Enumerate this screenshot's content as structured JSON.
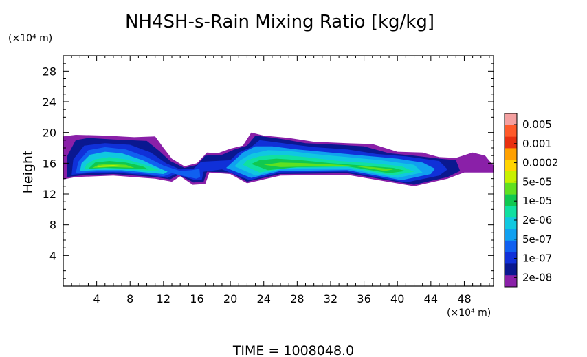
{
  "chart_data": {
    "type": "heatmap",
    "title": "NH4SH-s-Rain Mixing Ratio [kg/kg]",
    "xlabel": "",
    "ylabel": "Height",
    "x_unit": "(×10⁴ m)",
    "y_unit": "(×10⁴ m)",
    "xlim": [
      0,
      51.5
    ],
    "ylim": [
      0,
      30
    ],
    "x_ticks": [
      4,
      8,
      12,
      16,
      20,
      24,
      28,
      32,
      36,
      40,
      44,
      48
    ],
    "y_ticks": [
      4,
      8,
      12,
      16,
      20,
      24,
      28
    ],
    "colorbar": {
      "labels": [
        "0.005",
        "0.001",
        "0.0002",
        "5e-05",
        "1e-05",
        "2e-06",
        "5e-07",
        "1e-07",
        "2e-08"
      ],
      "colors": [
        "#f4a0a0",
        "#ff5a2a",
        "#e83010",
        "#ffa000",
        "#ffd400",
        "#c8f000",
        "#60e020",
        "#10c850",
        "#10e0a0",
        "#10c8e0",
        "#10a0f0",
        "#1060f0",
        "#1030d8",
        "#0a1890",
        "#8a20a8"
      ]
    },
    "regions": [
      {
        "level": 0,
        "points": [
          [
            0,
            13.9
          ],
          [
            1.5,
            14.2
          ],
          [
            6,
            14.4
          ],
          [
            11,
            14
          ],
          [
            13,
            13.6
          ],
          [
            14,
            14.3
          ],
          [
            15.5,
            13.2
          ],
          [
            17,
            13.3
          ],
          [
            17.5,
            14.8
          ],
          [
            20,
            14.6
          ],
          [
            22,
            13.4
          ],
          [
            26,
            14.4
          ],
          [
            34,
            14.5
          ],
          [
            42,
            13
          ],
          [
            46,
            14
          ],
          [
            48,
            14.8
          ],
          [
            51.5,
            14.8
          ],
          [
            51.5,
            15.7
          ],
          [
            50.5,
            17
          ],
          [
            49,
            17.4
          ],
          [
            47,
            16.7
          ],
          [
            45,
            16.8
          ],
          [
            43,
            17.4
          ],
          [
            40,
            17.5
          ],
          [
            37,
            18.5
          ],
          [
            34,
            18.6
          ],
          [
            30,
            18.8
          ],
          [
            27,
            19.3
          ],
          [
            24,
            19.6
          ],
          [
            22.5,
            20
          ],
          [
            21.5,
            18.3
          ],
          [
            20,
            17.9
          ],
          [
            18.5,
            17.3
          ],
          [
            17.2,
            17.4
          ],
          [
            16,
            16
          ],
          [
            14.5,
            15.6
          ],
          [
            13,
            16.6
          ],
          [
            12,
            18
          ],
          [
            11,
            19.5
          ],
          [
            8.5,
            19.4
          ],
          [
            5,
            19.6
          ],
          [
            1.5,
            19.7
          ],
          [
            0,
            19.5
          ]
        ]
      },
      {
        "level": 1,
        "points": [
          [
            0.4,
            14.2
          ],
          [
            2,
            14.4
          ],
          [
            6,
            14.6
          ],
          [
            11,
            14.2
          ],
          [
            12.8,
            13.9
          ],
          [
            13.8,
            14.5
          ],
          [
            15.6,
            13.5
          ],
          [
            16.8,
            13.6
          ],
          [
            17.2,
            14.9
          ],
          [
            20,
            14.8
          ],
          [
            22,
            13.6
          ],
          [
            26,
            14.6
          ],
          [
            34,
            14.7
          ],
          [
            42,
            13.2
          ],
          [
            46,
            14.2
          ],
          [
            47.5,
            15
          ],
          [
            47,
            16.4
          ],
          [
            45,
            16.6
          ],
          [
            42,
            17
          ],
          [
            39,
            17.3
          ],
          [
            36,
            18.2
          ],
          [
            33,
            18.4
          ],
          [
            29,
            18.6
          ],
          [
            26.5,
            19.1
          ],
          [
            24.5,
            19.4
          ],
          [
            23,
            19.6
          ],
          [
            22,
            18.3
          ],
          [
            20.5,
            17.8
          ],
          [
            19,
            17.1
          ],
          [
            17,
            17
          ],
          [
            16,
            15.8
          ],
          [
            14.5,
            15.4
          ],
          [
            12.8,
            16.3
          ],
          [
            11.5,
            17.6
          ],
          [
            10,
            18.9
          ],
          [
            6,
            19.1
          ],
          [
            3,
            19.3
          ],
          [
            1.5,
            19
          ],
          [
            0.5,
            17
          ]
        ]
      },
      {
        "level": 2,
        "points": [
          [
            1,
            14.5
          ],
          [
            3,
            14.7
          ],
          [
            6,
            14.8
          ],
          [
            10.5,
            14.4
          ],
          [
            12.5,
            14.1
          ],
          [
            13.4,
            14.6
          ],
          [
            15.8,
            13.8
          ],
          [
            16.6,
            13.9
          ],
          [
            16.8,
            14.9
          ],
          [
            19,
            15.2
          ],
          [
            22.3,
            13.8
          ],
          [
            26,
            14.8
          ],
          [
            34,
            14.9
          ],
          [
            41,
            13.5
          ],
          [
            45,
            14.4
          ],
          [
            46,
            15.2
          ],
          [
            45,
            16.3
          ],
          [
            41,
            16.9
          ],
          [
            37.5,
            17.2
          ],
          [
            34,
            17.8
          ],
          [
            30,
            18.1
          ],
          [
            27,
            18.5
          ],
          [
            25,
            18.8
          ],
          [
            23.5,
            19
          ],
          [
            22.5,
            18.1
          ],
          [
            21,
            17.4
          ],
          [
            20,
            16.4
          ],
          [
            16.5,
            16.2
          ],
          [
            15.6,
            15.3
          ],
          [
            14,
            15.2
          ],
          [
            12.3,
            16
          ],
          [
            10.5,
            17.4
          ],
          [
            8,
            18.4
          ],
          [
            5,
            18.6
          ],
          [
            2.5,
            18.3
          ],
          [
            1.2,
            16.5
          ]
        ]
      },
      {
        "level": 3,
        "points": [
          [
            1.5,
            14.7
          ],
          [
            4,
            14.9
          ],
          [
            7,
            14.9
          ],
          [
            10,
            14.6
          ],
          [
            12,
            14.3
          ],
          [
            13,
            14.7
          ],
          [
            15.9,
            14
          ],
          [
            16.4,
            14.2
          ],
          [
            16.3,
            15.3
          ],
          [
            15.4,
            15.1
          ],
          [
            14,
            15
          ],
          [
            12,
            15.7
          ],
          [
            10,
            16.8
          ],
          [
            7.5,
            17.8
          ],
          [
            5,
            18.1
          ],
          [
            3,
            17.7
          ],
          [
            1.8,
            16.2
          ]
        ]
      },
      {
        "level": 4,
        "points": [
          [
            19.5,
            15.4
          ],
          [
            22.5,
            14.1
          ],
          [
            26,
            15
          ],
          [
            34,
            15.1
          ],
          [
            40.5,
            13.8
          ],
          [
            44,
            14.6
          ],
          [
            44.5,
            15.3
          ],
          [
            43,
            16.1
          ],
          [
            40,
            16.6
          ],
          [
            36,
            17
          ],
          [
            32,
            17.4
          ],
          [
            28,
            17.8
          ],
          [
            25,
            18.2
          ],
          [
            23,
            18.2
          ],
          [
            21.5,
            17.4
          ],
          [
            20.5,
            16.4
          ]
        ]
      },
      {
        "level": 5,
        "points": [
          [
            2,
            15
          ],
          [
            4,
            15.1
          ],
          [
            7,
            15.1
          ],
          [
            10,
            14.8
          ],
          [
            12,
            14.6
          ],
          [
            12.5,
            14.9
          ],
          [
            11,
            15.6
          ],
          [
            9.5,
            16.4
          ],
          [
            7,
            17.3
          ],
          [
            5,
            17.5
          ],
          [
            3.2,
            17.1
          ],
          [
            2.2,
            16
          ]
        ]
      },
      {
        "level": 5,
        "points": [
          [
            20.5,
            15.6
          ],
          [
            23,
            14.4
          ],
          [
            26,
            15.2
          ],
          [
            34,
            15.3
          ],
          [
            40,
            14.1
          ],
          [
            43,
            14.8
          ],
          [
            42,
            15.8
          ],
          [
            38,
            16.4
          ],
          [
            34,
            16.8
          ],
          [
            30,
            17.2
          ],
          [
            27,
            17.6
          ],
          [
            24.5,
            17.7
          ],
          [
            22.5,
            17.2
          ],
          [
            21.2,
            16.4
          ]
        ]
      },
      {
        "level": 6,
        "points": [
          [
            2.5,
            15.2
          ],
          [
            5,
            15.3
          ],
          [
            8,
            15.2
          ],
          [
            10.5,
            15
          ],
          [
            11.5,
            15.1
          ],
          [
            9.5,
            15.9
          ],
          [
            7.5,
            16.5
          ],
          [
            5.5,
            16.8
          ],
          [
            3.8,
            16.5
          ],
          [
            2.8,
            15.9
          ]
        ]
      },
      {
        "level": 6,
        "points": [
          [
            21.5,
            15.8
          ],
          [
            23.5,
            14.8
          ],
          [
            27,
            15.4
          ],
          [
            34,
            15.5
          ],
          [
            39.5,
            14.4
          ],
          [
            42,
            14.9
          ],
          [
            40.5,
            15.6
          ],
          [
            37,
            16
          ],
          [
            33,
            16.3
          ],
          [
            29,
            16.8
          ],
          [
            26,
            17.1
          ],
          [
            23.5,
            16.9
          ],
          [
            22,
            16.4
          ]
        ]
      },
      {
        "level": 7,
        "points": [
          [
            3,
            15.3
          ],
          [
            5,
            15.4
          ],
          [
            8,
            15.3
          ],
          [
            10.2,
            15.2
          ],
          [
            9.5,
            15.6
          ],
          [
            7.5,
            16.1
          ],
          [
            5.5,
            16.3
          ],
          [
            3.8,
            16.1
          ]
        ]
      },
      {
        "level": 7,
        "points": [
          [
            22.5,
            15.9
          ],
          [
            24.5,
            15.1
          ],
          [
            28,
            15.5
          ],
          [
            34,
            15.6
          ],
          [
            39,
            14.7
          ],
          [
            41,
            15
          ],
          [
            39.5,
            15.4
          ],
          [
            36,
            15.7
          ],
          [
            32,
            16
          ],
          [
            28.5,
            16.4
          ],
          [
            25.5,
            16.6
          ],
          [
            23.5,
            16.4
          ]
        ]
      },
      {
        "level": 8,
        "points": [
          [
            3.5,
            15.4
          ],
          [
            6,
            15.5
          ],
          [
            8.5,
            15.4
          ],
          [
            7.5,
            15.8
          ],
          [
            5.5,
            15.9
          ],
          [
            4.2,
            15.8
          ]
        ]
      },
      {
        "level": 8,
        "points": [
          [
            24,
            15.8
          ],
          [
            26,
            15.5
          ],
          [
            30,
            15.6
          ],
          [
            35,
            15.6
          ],
          [
            38.5,
            15
          ],
          [
            39.5,
            15.2
          ],
          [
            37,
            15.5
          ],
          [
            33,
            15.8
          ],
          [
            29,
            16
          ],
          [
            26,
            16.1
          ]
        ]
      },
      {
        "level": 9,
        "points": [
          [
            4,
            15.5
          ],
          [
            6,
            15.6
          ],
          [
            7.5,
            15.6
          ],
          [
            6,
            15.75
          ],
          [
            4.6,
            15.7
          ]
        ]
      }
    ]
  },
  "footer": {
    "time_text": "TIME  =  1008048.0"
  }
}
